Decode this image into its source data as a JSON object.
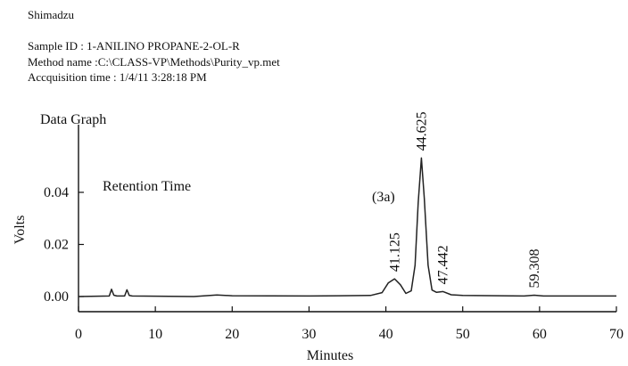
{
  "header": {
    "vendor": "Shimadzu",
    "sample_id": "Sample ID : 1-ANILINO PROPANE-2-OL-R",
    "method_name": "Method name :C:\\CLASS-VP\\Methods\\Purity_vp.met",
    "acquisition_time": "Accquisition time : 1/4/11  3:28:18 PM"
  },
  "plot": {
    "title": "Data Graph",
    "subtitle": "Retention Time",
    "peak_annotation": "(3a)"
  },
  "colors": {
    "trace": "#222222",
    "axis": "#111111",
    "background": "#ffffff"
  },
  "chart_data": {
    "type": "line",
    "title": "Data Graph",
    "xlabel": "Minutes",
    "ylabel": "Volts",
    "xlim": [
      0,
      70
    ],
    "ylim": [
      -0.006,
      0.065
    ],
    "x_ticks": [
      0,
      10,
      20,
      30,
      40,
      50,
      60,
      70
    ],
    "y_ticks": [
      0.0,
      0.02,
      0.04
    ],
    "y_tick_labels": [
      "0.00",
      "0.02",
      "0.04"
    ],
    "grid": false,
    "series": [
      {
        "x": [
          0,
          4.0,
          4.3,
          4.6,
          5.0,
          6.0,
          6.3,
          6.6,
          7.0,
          15.0,
          16.5,
          18.0,
          20.0,
          30.0,
          38.0,
          39.5,
          40.3,
          41.125,
          41.9,
          42.6,
          43.3,
          43.8,
          44.2,
          44.625,
          45.0,
          45.5,
          46.0,
          46.6,
          47.442,
          48.5,
          50.0,
          58.0,
          59.308,
          60.5,
          70.0
        ],
        "y": [
          0.0,
          0.0002,
          0.0028,
          0.0005,
          0.0002,
          0.0002,
          0.0026,
          0.0004,
          0.0002,
          0.0,
          0.0003,
          0.0006,
          0.0003,
          0.0002,
          0.0004,
          0.0015,
          0.0052,
          0.0068,
          0.0045,
          0.0012,
          0.0022,
          0.012,
          0.036,
          0.0532,
          0.038,
          0.012,
          0.0025,
          0.0016,
          0.0019,
          0.0007,
          0.0004,
          0.0002,
          0.0005,
          0.0002,
          0.0002
        ]
      }
    ],
    "peak_labels": [
      {
        "x": 41.125,
        "label": "41.125"
      },
      {
        "x": 44.625,
        "label": "44.625"
      },
      {
        "x": 47.442,
        "label": "47.442"
      },
      {
        "x": 59.308,
        "label": "59.308"
      }
    ]
  }
}
